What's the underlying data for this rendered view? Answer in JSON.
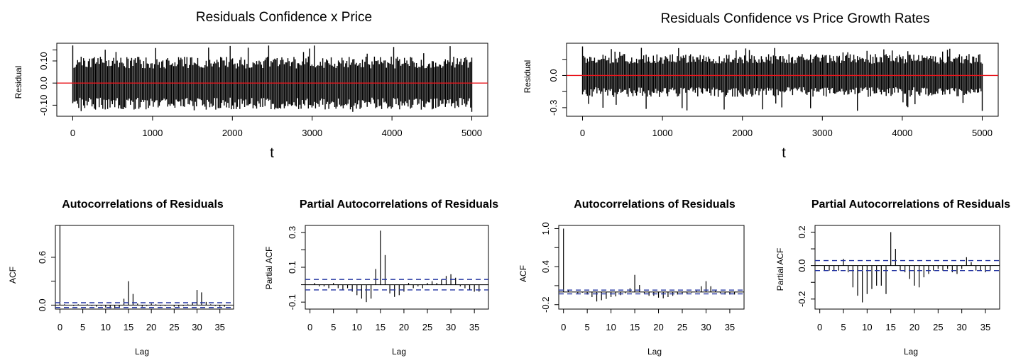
{
  "chart_data": [
    {
      "type": "line",
      "title": "Residuals Confidence x Price",
      "xlabel": "t",
      "ylabel": "Residual",
      "xlim": [
        0,
        5000
      ],
      "ylim": [
        -0.15,
        0.18
      ],
      "xticks": [
        "0",
        "1000",
        "2000",
        "3000",
        "4000",
        "5000"
      ],
      "yticks": [
        "-0.10",
        "0.0",
        "0.10"
      ],
      "extra_ticks": [
        0.15
      ],
      "reference_line": 0,
      "series": [
        {
          "n": 5000,
          "min": -0.13,
          "max": 0.17,
          "envelope": 0.12
        }
      ],
      "colors": {
        "series": "#000000",
        "reference": "#e8141c"
      }
    },
    {
      "type": "line",
      "title": "Residuals Confidence vs Price Growth Rates",
      "xlabel": "t",
      "ylabel": "Residual",
      "xlim": [
        0,
        5000
      ],
      "ylim": [
        -0.38,
        0.3
      ],
      "xticks": [
        "0",
        "1000",
        "2000",
        "3000",
        "4000",
        "5000"
      ],
      "yticks": [
        "-0.3",
        "0.0"
      ],
      "extra_ticks": [
        -0.15,
        0.15
      ],
      "reference_line": 0,
      "series": [
        {
          "n": 5000,
          "min": -0.33,
          "max": 0.27,
          "envelope": 0.2
        }
      ],
      "colors": {
        "series": "#000000",
        "reference": "#e8141c"
      }
    },
    {
      "type": "bar",
      "title": "Autocorrelations of Residuals",
      "xlabel": "Lag",
      "ylabel": "ACF",
      "xlim": [
        0,
        37
      ],
      "ylim": [
        -0.05,
        1.0
      ],
      "xticks": [
        "0",
        "5",
        "10",
        "15",
        "20",
        "25",
        "30",
        "35"
      ],
      "yticks": [
        "0.0",
        "0.6"
      ],
      "extra_ticks": [
        0.3
      ],
      "confidence_band": 0.03,
      "lags": [
        0,
        1,
        2,
        3,
        4,
        5,
        6,
        7,
        8,
        9,
        10,
        11,
        12,
        13,
        14,
        15,
        16,
        17,
        18,
        19,
        20,
        21,
        22,
        23,
        24,
        25,
        26,
        27,
        28,
        29,
        30,
        31,
        32,
        33,
        34,
        35,
        36
      ],
      "values": [
        1.0,
        0.01,
        0.0,
        -0.01,
        0.01,
        0.0,
        0.01,
        -0.01,
        -0.02,
        -0.01,
        -0.03,
        -0.04,
        -0.04,
        -0.03,
        0.08,
        0.3,
        0.14,
        0.02,
        -0.02,
        -0.01,
        0.02,
        0.01,
        -0.01,
        -0.01,
        0.0,
        -0.02,
        -0.02,
        -0.01,
        0.01,
        0.03,
        0.19,
        0.16,
        0.04,
        0.01,
        -0.01,
        -0.02,
        -0.02
      ],
      "colors": {
        "bars": "#000000",
        "band": "#2233a0"
      }
    },
    {
      "type": "bar",
      "title": "Partial Autocorrelations of Residuals",
      "xlabel": "Lag",
      "ylabel": "Partial ACF",
      "xlim": [
        0,
        37
      ],
      "ylim": [
        -0.14,
        0.34
      ],
      "xticks": [
        "0",
        "5",
        "10",
        "15",
        "20",
        "25",
        "30",
        "35"
      ],
      "yticks": [
        "-0.1",
        "0.1",
        "0.3"
      ],
      "extra_ticks": [
        0.0,
        0.2
      ],
      "confidence_band": 0.03,
      "lags": [
        1,
        2,
        3,
        4,
        5,
        6,
        7,
        8,
        9,
        10,
        11,
        12,
        13,
        14,
        15,
        16,
        17,
        18,
        19,
        20,
        21,
        22,
        23,
        24,
        25,
        26,
        27,
        28,
        29,
        30,
        31,
        32,
        33,
        34,
        35,
        36
      ],
      "values": [
        0.01,
        -0.01,
        -0.01,
        -0.02,
        0.01,
        -0.02,
        -0.03,
        -0.02,
        -0.04,
        -0.06,
        -0.08,
        -0.1,
        -0.08,
        0.09,
        0.31,
        0.17,
        -0.05,
        -0.07,
        -0.06,
        -0.04,
        0.01,
        -0.02,
        -0.01,
        -0.02,
        0.01,
        0.02,
        0.01,
        0.03,
        0.05,
        0.06,
        0.04,
        -0.01,
        -0.02,
        -0.03,
        -0.04,
        -0.04
      ],
      "colors": {
        "bars": "#000000",
        "band": "#2233a0"
      }
    },
    {
      "type": "bar",
      "title": "Autocorrelations of Residuals",
      "xlabel": "Lag",
      "ylabel": "ACF",
      "xlim": [
        0,
        37
      ],
      "ylim": [
        -0.27,
        1.05
      ],
      "xticks": [
        "0",
        "5",
        "10",
        "15",
        "20",
        "25",
        "30",
        "35"
      ],
      "yticks": [
        "-0.2",
        "0.4",
        "1.0"
      ],
      "extra_ticks": [
        0.1,
        0.7
      ],
      "confidence_band": 0.03,
      "lags": [
        0,
        1,
        2,
        3,
        4,
        5,
        6,
        7,
        8,
        9,
        10,
        11,
        12,
        13,
        14,
        15,
        16,
        17,
        18,
        19,
        20,
        21,
        22,
        23,
        24,
        25,
        26,
        27,
        28,
        29,
        30,
        31,
        32,
        33,
        34,
        35,
        36
      ],
      "values": [
        1.0,
        0.03,
        0.0,
        -0.02,
        -0.01,
        -0.04,
        -0.08,
        -0.15,
        -0.13,
        -0.11,
        -0.08,
        -0.07,
        -0.05,
        -0.02,
        0.06,
        0.27,
        0.11,
        -0.02,
        -0.06,
        -0.06,
        -0.09,
        -0.1,
        -0.08,
        -0.06,
        -0.04,
        -0.02,
        -0.03,
        -0.01,
        0.02,
        0.09,
        0.17,
        0.09,
        0.02,
        -0.02,
        -0.04,
        -0.04,
        -0.04
      ],
      "colors": {
        "bars": "#000000",
        "band": "#2233a0"
      }
    },
    {
      "type": "bar",
      "title": "Partial Autocorrelations of Residuals",
      "xlabel": "Lag",
      "ylabel": "Partial ACF",
      "xlim": [
        0,
        37
      ],
      "ylim": [
        -0.26,
        0.24
      ],
      "xticks": [
        "0",
        "5",
        "10",
        "15",
        "20",
        "25",
        "30",
        "35"
      ],
      "yticks": [
        "-0.2",
        "0.0",
        "0.2"
      ],
      "extra_ticks": [
        -0.1,
        0.1
      ],
      "confidence_band": 0.03,
      "lags": [
        1,
        2,
        3,
        4,
        5,
        6,
        7,
        8,
        9,
        10,
        11,
        12,
        13,
        14,
        15,
        16,
        17,
        18,
        19,
        20,
        21,
        22,
        23,
        24,
        25,
        26,
        27,
        28,
        29,
        30,
        31,
        32,
        33,
        34,
        35,
        36
      ],
      "values": [
        -0.03,
        -0.03,
        -0.03,
        -0.03,
        0.04,
        -0.04,
        -0.13,
        -0.18,
        -0.22,
        -0.17,
        -0.14,
        -0.12,
        -0.12,
        -0.17,
        0.2,
        0.1,
        -0.03,
        -0.04,
        -0.08,
        -0.12,
        -0.13,
        -0.07,
        -0.05,
        -0.03,
        -0.02,
        -0.03,
        -0.02,
        -0.04,
        -0.05,
        -0.02,
        0.05,
        0.02,
        -0.03,
        -0.03,
        -0.04,
        -0.03
      ],
      "colors": {
        "bars": "#000000",
        "band": "#2233a0"
      }
    }
  ]
}
